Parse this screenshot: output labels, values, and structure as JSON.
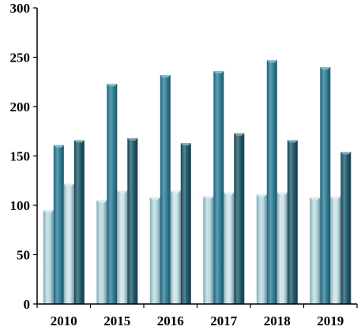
{
  "chart_data": {
    "type": "bar",
    "title": "",
    "xlabel": "",
    "ylabel": "",
    "categories": [
      "2010",
      "2015",
      "2016",
      "2017",
      "2018",
      "2019"
    ],
    "ylim": [
      0,
      300
    ],
    "yticks": [
      0,
      50,
      100,
      150,
      200,
      250,
      300
    ],
    "grid": false,
    "legend": "none",
    "series": [
      {
        "values": [
          95,
          105,
          108,
          109,
          111,
          108
        ],
        "color": "#b6dbe4"
      },
      {
        "values": [
          161,
          223,
          232,
          236,
          247,
          240
        ],
        "color": "#2b7f99"
      },
      {
        "values": [
          122,
          115,
          115,
          113,
          113,
          109
        ],
        "color": "#c7e4ec"
      },
      {
        "values": [
          166,
          168,
          163,
          173,
          166,
          154
        ],
        "color": "#1d5b6b"
      }
    ]
  }
}
